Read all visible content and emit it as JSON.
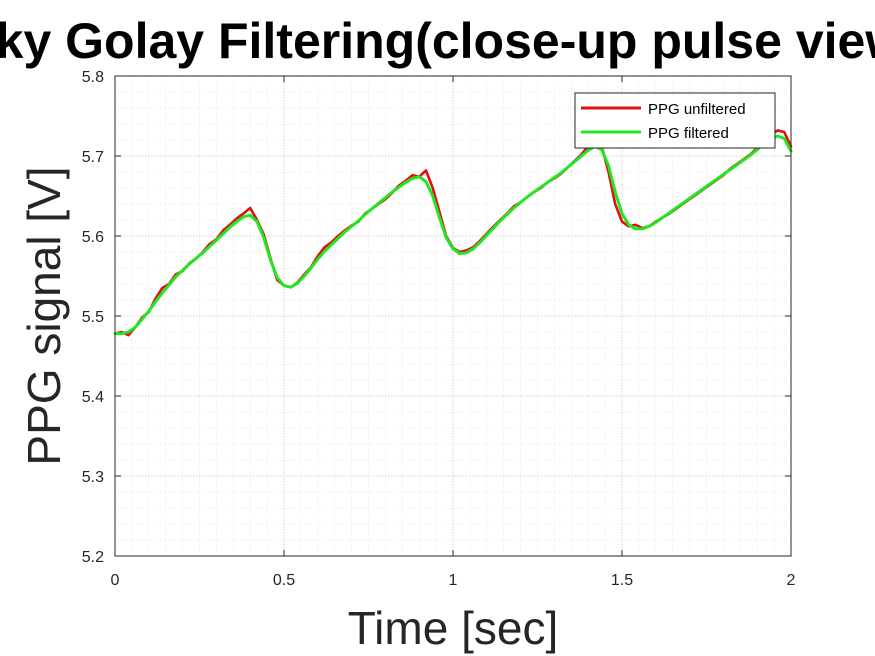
{
  "chart_data": {
    "type": "line",
    "title": "Savitzky Golay Filtering(close-up pulse view)",
    "xlabel": "Time [sec]",
    "ylabel": "PPG signal [V]",
    "xlim": [
      0,
      2
    ],
    "ylim": [
      5.2,
      5.8
    ],
    "xticks": [
      0,
      0.5,
      1,
      1.5,
      2
    ],
    "xtick_labels": [
      "0",
      "0.5",
      "1",
      "1.5",
      "2"
    ],
    "yticks": [
      5.2,
      5.3,
      5.4,
      5.5,
      5.6,
      5.7,
      5.8
    ],
    "ytick_labels": [
      "5.2",
      "5.3",
      "5.4",
      "5.5",
      "5.6",
      "5.7",
      "5.8"
    ],
    "grid": true,
    "minor_grid": true,
    "legend_position": "top-right",
    "series": [
      {
        "name": "PPG unfiltered",
        "color": "#e01010",
        "x": [
          0,
          0.02,
          0.04,
          0.06,
          0.08,
          0.1,
          0.12,
          0.14,
          0.16,
          0.18,
          0.2,
          0.22,
          0.24,
          0.26,
          0.28,
          0.3,
          0.32,
          0.34,
          0.36,
          0.38,
          0.4,
          0.42,
          0.44,
          0.46,
          0.48,
          0.5,
          0.52,
          0.54,
          0.56,
          0.58,
          0.6,
          0.62,
          0.64,
          0.66,
          0.68,
          0.7,
          0.72,
          0.74,
          0.76,
          0.78,
          0.8,
          0.82,
          0.84,
          0.86,
          0.88,
          0.9,
          0.92,
          0.94,
          0.96,
          0.98,
          1.0,
          1.02,
          1.04,
          1.06,
          1.08,
          1.1,
          1.12,
          1.14,
          1.16,
          1.18,
          1.2,
          1.22,
          1.24,
          1.26,
          1.28,
          1.3,
          1.32,
          1.34,
          1.36,
          1.38,
          1.4,
          1.42,
          1.44,
          1.46,
          1.48,
          1.5,
          1.52,
          1.54,
          1.56,
          1.58,
          1.6,
          1.62,
          1.64,
          1.66,
          1.68,
          1.7,
          1.72,
          1.74,
          1.76,
          1.78,
          1.8,
          1.82,
          1.84,
          1.86,
          1.88,
          1.9,
          1.92,
          1.94,
          1.96,
          1.98,
          2.0
        ],
        "y": [
          5.478,
          5.48,
          5.476,
          5.486,
          5.498,
          5.505,
          5.522,
          5.535,
          5.54,
          5.552,
          5.556,
          5.566,
          5.572,
          5.58,
          5.59,
          5.596,
          5.607,
          5.614,
          5.622,
          5.628,
          5.635,
          5.62,
          5.602,
          5.572,
          5.545,
          5.538,
          5.536,
          5.542,
          5.552,
          5.561,
          5.575,
          5.586,
          5.592,
          5.6,
          5.607,
          5.613,
          5.618,
          5.628,
          5.634,
          5.64,
          5.646,
          5.654,
          5.663,
          5.669,
          5.676,
          5.674,
          5.682,
          5.66,
          5.63,
          5.6,
          5.585,
          5.58,
          5.582,
          5.586,
          5.594,
          5.603,
          5.612,
          5.62,
          5.628,
          5.637,
          5.642,
          5.649,
          5.655,
          5.66,
          5.667,
          5.672,
          5.678,
          5.686,
          5.694,
          5.702,
          5.712,
          5.718,
          5.712,
          5.68,
          5.64,
          5.618,
          5.612,
          5.614,
          5.61,
          5.612,
          5.618,
          5.623,
          5.628,
          5.634,
          5.64,
          5.646,
          5.652,
          5.658,
          5.664,
          5.67,
          5.676,
          5.684,
          5.69,
          5.696,
          5.702,
          5.71,
          5.718,
          5.726,
          5.732,
          5.73,
          5.712
        ]
      },
      {
        "name": "PPG filtered",
        "color": "#22e622",
        "x": [
          0,
          0.02,
          0.04,
          0.06,
          0.08,
          0.1,
          0.12,
          0.14,
          0.16,
          0.18,
          0.2,
          0.22,
          0.24,
          0.26,
          0.28,
          0.3,
          0.32,
          0.34,
          0.36,
          0.38,
          0.4,
          0.42,
          0.44,
          0.46,
          0.48,
          0.5,
          0.52,
          0.54,
          0.56,
          0.58,
          0.6,
          0.62,
          0.64,
          0.66,
          0.68,
          0.7,
          0.72,
          0.74,
          0.76,
          0.78,
          0.8,
          0.82,
          0.84,
          0.86,
          0.88,
          0.9,
          0.92,
          0.94,
          0.96,
          0.98,
          1.0,
          1.02,
          1.04,
          1.06,
          1.08,
          1.1,
          1.12,
          1.14,
          1.16,
          1.18,
          1.2,
          1.22,
          1.24,
          1.26,
          1.28,
          1.3,
          1.32,
          1.34,
          1.36,
          1.38,
          1.4,
          1.42,
          1.44,
          1.46,
          1.48,
          1.5,
          1.52,
          1.54,
          1.56,
          1.58,
          1.6,
          1.62,
          1.64,
          1.66,
          1.68,
          1.7,
          1.72,
          1.74,
          1.76,
          1.78,
          1.8,
          1.82,
          1.84,
          1.86,
          1.88,
          1.9,
          1.92,
          1.94,
          1.96,
          1.98,
          2.0
        ],
        "y": [
          5.478,
          5.478,
          5.48,
          5.486,
          5.496,
          5.506,
          5.518,
          5.529,
          5.539,
          5.549,
          5.557,
          5.565,
          5.572,
          5.579,
          5.587,
          5.595,
          5.603,
          5.611,
          5.618,
          5.624,
          5.626,
          5.618,
          5.598,
          5.57,
          5.548,
          5.538,
          5.536,
          5.541,
          5.55,
          5.56,
          5.571,
          5.581,
          5.589,
          5.597,
          5.605,
          5.612,
          5.619,
          5.627,
          5.634,
          5.641,
          5.648,
          5.655,
          5.661,
          5.667,
          5.672,
          5.674,
          5.668,
          5.65,
          5.623,
          5.598,
          5.584,
          5.578,
          5.579,
          5.584,
          5.592,
          5.601,
          5.61,
          5.619,
          5.627,
          5.635,
          5.642,
          5.649,
          5.655,
          5.661,
          5.667,
          5.673,
          5.679,
          5.686,
          5.693,
          5.7,
          5.707,
          5.712,
          5.708,
          5.688,
          5.655,
          5.628,
          5.614,
          5.609,
          5.609,
          5.612,
          5.617,
          5.623,
          5.629,
          5.635,
          5.641,
          5.647,
          5.653,
          5.659,
          5.665,
          5.671,
          5.677,
          5.683,
          5.689,
          5.695,
          5.701,
          5.708,
          5.715,
          5.721,
          5.725,
          5.722,
          5.706
        ]
      }
    ]
  }
}
